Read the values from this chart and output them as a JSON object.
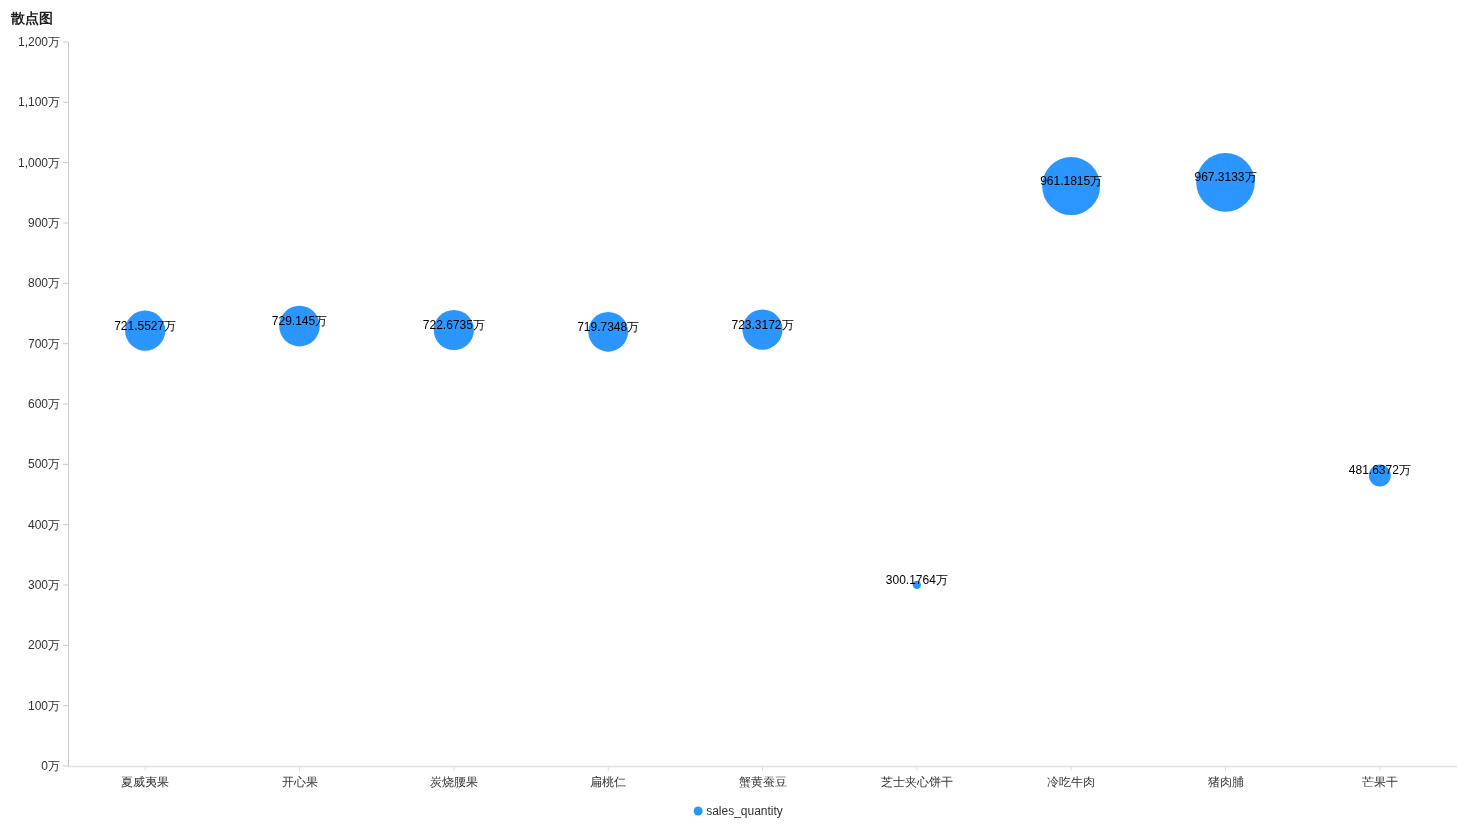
{
  "chart_data": {
    "type": "bubble",
    "title": "散点图",
    "categories": [
      "夏威夷果",
      "开心果",
      "炭烧腰果",
      "扁桃仁",
      "蟹黄蚕豆",
      "芝士夹心饼干",
      "冷吃牛肉",
      "猪肉脯",
      "芒果干"
    ],
    "series": [
      {
        "name": "sales_quantity",
        "color": "#2b96ff",
        "values": [
          721.5527,
          729.145,
          722.6735,
          719.7348,
          723.3172,
          300.1764,
          961.1815,
          967.3133,
          481.6372
        ],
        "sizes": [
          0.47,
          0.48,
          0.47,
          0.46,
          0.47,
          0.02,
          0.98,
          1,
          0.14
        ],
        "value_labels": [
          "721.5527万",
          "729.145万",
          "722.6735万",
          "719.7348万",
          "723.3172万",
          "300.1764万",
          "961.1815万",
          "967.3133万",
          "481.6372万"
        ]
      }
    ],
    "ylim": [
      0,
      1200
    ],
    "yticks": [
      {
        "value": 0,
        "label": "0万"
      },
      {
        "value": 100,
        "label": "100万"
      },
      {
        "value": 200,
        "label": "200万"
      },
      {
        "value": 300,
        "label": "300万"
      },
      {
        "value": 400,
        "label": "400万"
      },
      {
        "value": 500,
        "label": "500万"
      },
      {
        "value": 600,
        "label": "600万"
      },
      {
        "value": 700,
        "label": "700万"
      },
      {
        "value": 800,
        "label": "800万"
      },
      {
        "value": 900,
        "label": "900万"
      },
      {
        "value": 1000,
        "label": "1,000万"
      },
      {
        "value": 1100,
        "label": "1,100万"
      },
      {
        "value": 1200,
        "label": "1,200万"
      }
    ],
    "legend": "bottom",
    "marker": "circle"
  }
}
